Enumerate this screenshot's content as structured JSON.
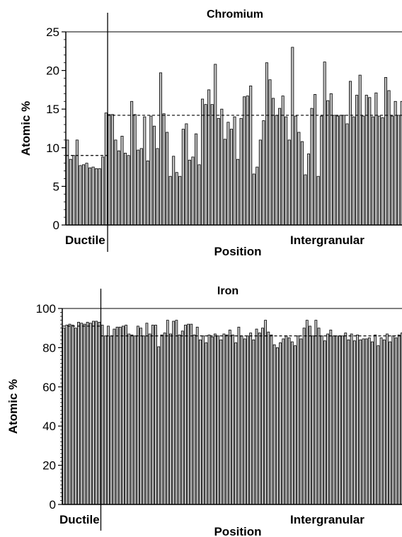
{
  "chart_data": [
    {
      "type": "bar",
      "title": "Chromium",
      "xlabel": "Position",
      "ylabel": "Atomic %",
      "ylim": [
        0,
        25
      ],
      "yticks": [
        0,
        5,
        10,
        15,
        20,
        25
      ],
      "region_labels": [
        "Ductile",
        "Intergranular"
      ],
      "ductile_bar_count": 13,
      "mean_lines": [
        {
          "region": "Ductile",
          "value": 9.0
        },
        {
          "region": "Intergranular",
          "value": 14.2
        }
      ],
      "grid": false,
      "bar_color": "#c0c0c0",
      "values": [
        11.0,
        8.5,
        9.0,
        11.0,
        7.7,
        7.8,
        8.0,
        7.4,
        7.5,
        7.3,
        7.3,
        8.8,
        14.5,
        14.3,
        14.3,
        11.0,
        9.6,
        11.5,
        9.3,
        9.0,
        16.0,
        14.3,
        9.7,
        9.9,
        14.0,
        8.3,
        14.1,
        12.8,
        9.9,
        19.7,
        14.4,
        12.0,
        6.3,
        8.9,
        6.8,
        6.3,
        12.4,
        13.1,
        8.4,
        8.8,
        11.8,
        7.8,
        16.3,
        15.6,
        17.5,
        15.6,
        20.8,
        13.8,
        15.0,
        11.1,
        13.3,
        12.4,
        14.0,
        8.5,
        13.8,
        16.6,
        16.7,
        18.0,
        6.6,
        7.5,
        11.0,
        13.5,
        21.0,
        18.8,
        16.4,
        14.2,
        15.1,
        16.7,
        14.0,
        11.0,
        23.0,
        14.1,
        12.0,
        10.8,
        6.5,
        9.2,
        15.1,
        16.9,
        6.3,
        14.1,
        21.1,
        16.1,
        17.0,
        14.2,
        14.1,
        14.2,
        14.2,
        13.1,
        18.6,
        14.0,
        16.8,
        19.4,
        14.1,
        16.8,
        16.5,
        14.0,
        17.1,
        14.1,
        13.9,
        19.1,
        17.4,
        14.1,
        16.0,
        14.2,
        16.0
      ]
    },
    {
      "type": "bar",
      "title": "Iron",
      "xlabel": "Position",
      "ylabel": "Atomic %",
      "ylim": [
        0,
        100
      ],
      "yticks": [
        0,
        20,
        40,
        60,
        80,
        100
      ],
      "region_labels": [
        "Ductile",
        "Intergranular"
      ],
      "ductile_bar_count": 13,
      "mean_lines": [
        {
          "region": "Ductile",
          "value": 91.0
        },
        {
          "region": "Intergranular",
          "value": 86.0
        }
      ],
      "grid": false,
      "bar_color": "#c0c0c0",
      "values": [
        90.0,
        91.5,
        92.0,
        91.5,
        90.0,
        93.0,
        92.5,
        92.0,
        93.0,
        92.5,
        93.5,
        93.5,
        93.0,
        91.5,
        86.0,
        91.0,
        86.0,
        89.5,
        90.5,
        90.5,
        91.0,
        91.5,
        87.0,
        86.5,
        86.0,
        91.0,
        90.0,
        86.0,
        92.5,
        87.0,
        91.5,
        91.5,
        80.5,
        86.5,
        87.5,
        94.0,
        87.0,
        93.5,
        94.0,
        86.5,
        88.5,
        91.5,
        92.0,
        92.0,
        86.5,
        90.5,
        84.0,
        86.0,
        82.5,
        86.5,
        85.5,
        87.0,
        86.0,
        84.0,
        87.0,
        86.5,
        89.0,
        86.5,
        82.5,
        90.5,
        86.0,
        84.5,
        86.0,
        87.5,
        84.0,
        89.5,
        87.5,
        90.0,
        94.0,
        88.0,
        86.5,
        81.5,
        80.0,
        82.5,
        84.5,
        86.0,
        85.0,
        83.0,
        81.0,
        86.0,
        84.5,
        90.0,
        94.0,
        91.0,
        86.0,
        94.0,
        90.0,
        86.0,
        83.5,
        87.0,
        89.0,
        86.0,
        86.0,
        86.0,
        86.0,
        87.5,
        84.0,
        87.0,
        83.5,
        86.5,
        84.0,
        84.5,
        84.5,
        85.0,
        83.0,
        86.5,
        81.0,
        85.0,
        84.0,
        87.0,
        83.0,
        86.0,
        85.0,
        86.5,
        87.5
      ]
    }
  ]
}
